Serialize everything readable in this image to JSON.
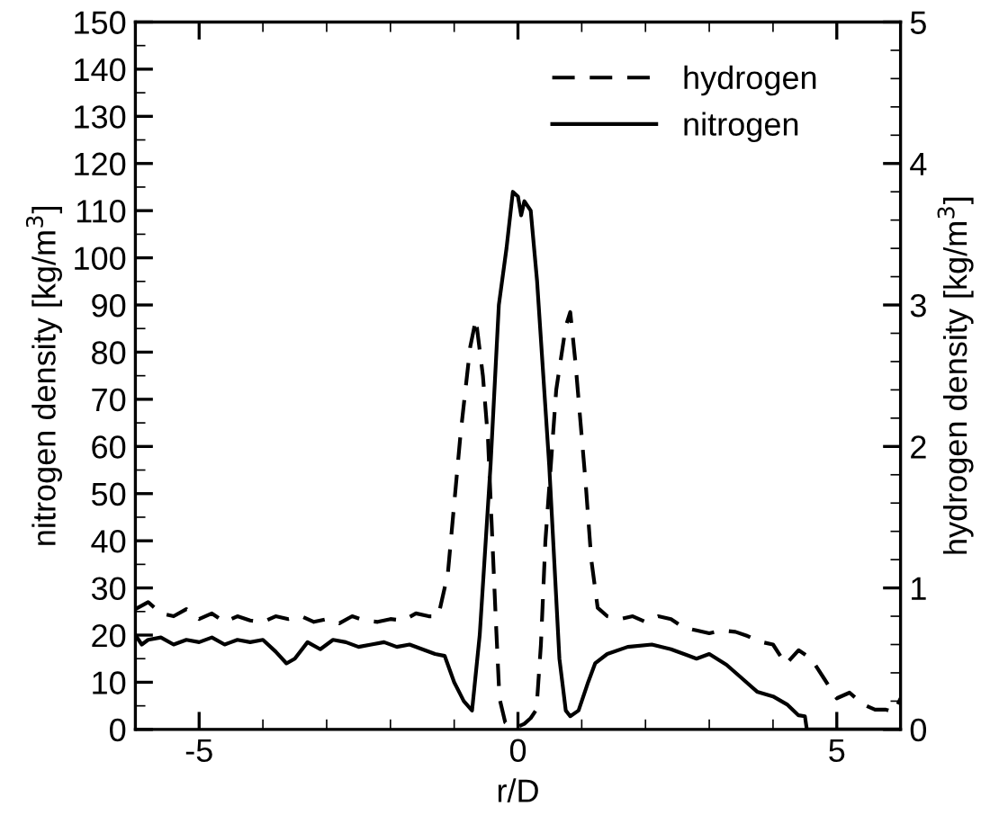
{
  "chart_data": {
    "type": "line",
    "xlabel": "r/D",
    "ylabel": "nitrogen density [kg/m$^{3}$]",
    "y2label": "hydrogen density [kg/m$^{3}$]",
    "xlim": [
      -6,
      6
    ],
    "xticks": [
      -5,
      0,
      5
    ],
    "ylim": [
      0,
      150
    ],
    "yticks": [
      0,
      10,
      20,
      30,
      40,
      50,
      60,
      70,
      80,
      90,
      100,
      110,
      120,
      130,
      140,
      150
    ],
    "y2lim": [
      0,
      5
    ],
    "y2ticks": [
      0,
      1,
      2,
      3,
      4,
      5
    ],
    "legend": "top right",
    "grid": false,
    "series": [
      {
        "name": "hydrogen",
        "color": "#000000",
        "axis": "y2",
        "line_style": "dashed",
        "x": [
          -6,
          -5.8,
          -5.6,
          -5.4,
          -5.2,
          -5,
          -4.8,
          -4.6,
          -4.4,
          -4.2,
          -4,
          -3.8,
          -3.6,
          -3.4,
          -3.2,
          -3,
          -2.8,
          -2.6,
          -2.4,
          -2.2,
          -2,
          -1.8,
          -1.6,
          -1.4,
          -1.25,
          -1.1,
          -0.9,
          -0.75,
          -0.66,
          -0.55,
          -0.47,
          -0.35,
          -0.29,
          -0.2,
          -0.1,
          0,
          0.1,
          0.2,
          0.29,
          0.36,
          0.43,
          0.6,
          0.75,
          0.82,
          0.9,
          1.06,
          1.15,
          1.25,
          1.4,
          1.6,
          1.8,
          2,
          2.2,
          2.4,
          2.6,
          2.8,
          3,
          3.2,
          3.41,
          3.6,
          3.8,
          4,
          4.2,
          4.4,
          4.6,
          4.8,
          5,
          5.2,
          5.4,
          5.6,
          5.77,
          5.9,
          6
        ],
        "values": [
          0.85,
          0.9,
          0.82,
          0.8,
          0.85,
          0.78,
          0.82,
          0.76,
          0.8,
          0.77,
          0.76,
          0.8,
          0.78,
          0.8,
          0.76,
          0.78,
          0.75,
          0.8,
          0.77,
          0.76,
          0.78,
          0.77,
          0.82,
          0.8,
          0.8,
          1.1,
          2.09,
          2.7,
          2.9,
          2.5,
          2.05,
          0.8,
          0.22,
          0.05,
          0.02,
          0.02,
          0.04,
          0.08,
          0.14,
          0.6,
          1.33,
          2.4,
          2.85,
          2.95,
          2.6,
          1.75,
          1.2,
          0.86,
          0.8,
          0.78,
          0.8,
          0.76,
          0.8,
          0.78,
          0.72,
          0.7,
          0.68,
          0.7,
          0.69,
          0.66,
          0.62,
          0.6,
          0.46,
          0.56,
          0.5,
          0.36,
          0.22,
          0.26,
          0.18,
          0.14,
          0.14,
          0.12,
          0.22
        ]
      },
      {
        "name": "nitrogen",
        "color": "#000000",
        "axis": "y",
        "line_style": "solid",
        "x": [
          -6,
          -5.9,
          -5.8,
          -5.6,
          -5.4,
          -5.2,
          -5,
          -4.8,
          -4.6,
          -4.4,
          -4.2,
          -4,
          -3.8,
          -3.63,
          -3.5,
          -3.3,
          -3.1,
          -2.9,
          -2.7,
          -2.5,
          -2.3,
          -2.1,
          -1.9,
          -1.7,
          -1.5,
          -1.3,
          -1.15,
          -1,
          -0.85,
          -0.72,
          -0.6,
          -0.43,
          -0.3,
          -0.18,
          -0.08,
          0,
          0.05,
          0.1,
          0.2,
          0.3,
          0.49,
          0.65,
          0.75,
          0.82,
          0.95,
          1.1,
          1.21,
          1.4,
          1.72,
          2.1,
          2.4,
          2.8,
          3.0,
          3.27,
          3.5,
          3.75,
          4,
          4.22,
          4.4,
          4.5,
          4.53,
          5,
          5.5,
          6
        ],
        "values": [
          20,
          18,
          19,
          19.5,
          18,
          19,
          18.5,
          19.5,
          18,
          19,
          18.5,
          19,
          16.5,
          14,
          15,
          18.5,
          17,
          19,
          18.5,
          17.5,
          18,
          18.5,
          17.5,
          18,
          17,
          16,
          15.6,
          10,
          6,
          4,
          20,
          56,
          90,
          102,
          114,
          113,
          109,
          112,
          110,
          95,
          56,
          15,
          4,
          2.8,
          4,
          10,
          14,
          16,
          17.5,
          18,
          17,
          15,
          16,
          13.7,
          11,
          8,
          7,
          5.3,
          3,
          2.8,
          0,
          0,
          0,
          0
        ]
      }
    ]
  }
}
